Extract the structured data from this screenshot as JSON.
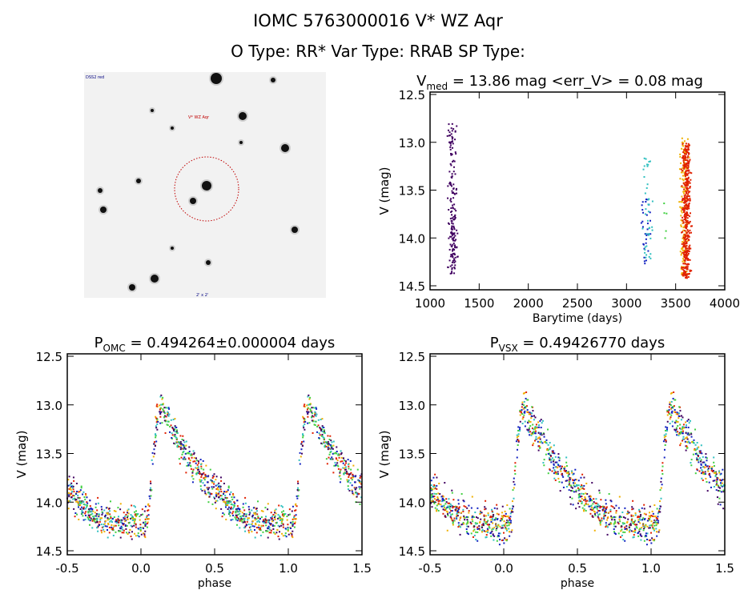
{
  "header": {
    "title": "IOMC 5763000016    V* WZ Aqr",
    "subtitle": "O Type: RR*  Var Type: RRAB  SP Type:"
  },
  "thumbnail": {
    "label_top_left": "DSS2 red",
    "label_target": "V* WZ Aqr",
    "label_bottom": "2' x 2'"
  },
  "chart_data": [
    {
      "type": "scatter",
      "title": "V_med = 13.86 mag <err_V> = 0.08 mag",
      "title_main": "V",
      "title_sub": "med",
      "title_rest": " = 13.86 mag <err_V> = 0.08 mag",
      "xlabel": "Barytime (days)",
      "ylabel": "V (mag)",
      "xlim": [
        1000,
        4000
      ],
      "ylim": [
        12.5,
        14.5
      ],
      "y_inverted": true,
      "xticks": [
        "1000",
        "1500",
        "2000",
        "2500",
        "3000",
        "3500",
        "4000"
      ],
      "yticks": [
        "12.5",
        "13.0",
        "13.5",
        "14.0",
        "14.5"
      ],
      "groups": [
        {
          "x": 1230,
          "ymin": 12.8,
          "ymax": 14.37,
          "n": 180,
          "color": "#400060"
        },
        {
          "x": 3195,
          "ymin": 13.55,
          "ymax": 14.28,
          "n": 30,
          "color": "#1020c0"
        },
        {
          "x": 3215,
          "ymin": 13.15,
          "ymax": 14.25,
          "n": 40,
          "color": "#30c0c0"
        },
        {
          "x": 3390,
          "ymin": 13.63,
          "ymax": 14.12,
          "n": 5,
          "color": "#40d040"
        },
        {
          "x": 3585,
          "ymin": 12.95,
          "ymax": 14.4,
          "n": 150,
          "color": "#f0b000"
        },
        {
          "x": 3610,
          "ymin": 13.0,
          "ymax": 14.42,
          "n": 400,
          "color": "#e02000"
        }
      ]
    },
    {
      "type": "scatter",
      "title_main": "P",
      "title_sub": "OMC",
      "title_rest": " = 0.494264±0.000004 days",
      "xlabel": "phase",
      "ylabel": "V (mag)",
      "xlim": [
        -0.5,
        1.5
      ],
      "ylim": [
        12.5,
        14.5
      ],
      "y_inverted": true,
      "xticks": [
        "-0.5",
        "0.0",
        "0.5",
        "1.0",
        "1.5"
      ],
      "yticks": [
        "12.5",
        "13.0",
        "13.5",
        "14.0",
        "14.5"
      ],
      "template_phase": [
        0,
        0.05,
        0.08,
        0.12,
        0.15,
        0.25,
        0.35,
        0.45,
        0.55,
        0.65,
        0.75,
        0.85,
        1.0
      ],
      "template_mag": [
        14.2,
        14.15,
        13.6,
        13.02,
        13.05,
        13.35,
        13.6,
        13.8,
        13.95,
        14.1,
        14.18,
        14.22,
        14.2
      ],
      "scatter": 0.08
    },
    {
      "type": "scatter",
      "title_main": "P",
      "title_sub": "VSX",
      "title_rest": " = 0.49426770 days",
      "xlabel": "phase",
      "ylabel": "V (mag)",
      "xlim": [
        -0.5,
        1.5
      ],
      "ylim": [
        12.5,
        14.5
      ],
      "y_inverted": true,
      "xticks": [
        "-0.5",
        "0.0",
        "0.5",
        "1.0",
        "1.5"
      ],
      "yticks": [
        "12.5",
        "13.0",
        "13.5",
        "14.0",
        "14.5"
      ],
      "template_phase": [
        0,
        0.05,
        0.08,
        0.12,
        0.15,
        0.25,
        0.35,
        0.45,
        0.55,
        0.65,
        0.75,
        0.85,
        1.0
      ],
      "template_mag": [
        14.25,
        14.2,
        13.6,
        13.02,
        13.05,
        13.35,
        13.6,
        13.8,
        13.95,
        14.1,
        14.18,
        14.22,
        14.25
      ],
      "scatter": 0.09
    }
  ],
  "colors": [
    "#400060",
    "#1020c0",
    "#30c0c0",
    "#40d040",
    "#f0b000",
    "#e02000"
  ]
}
